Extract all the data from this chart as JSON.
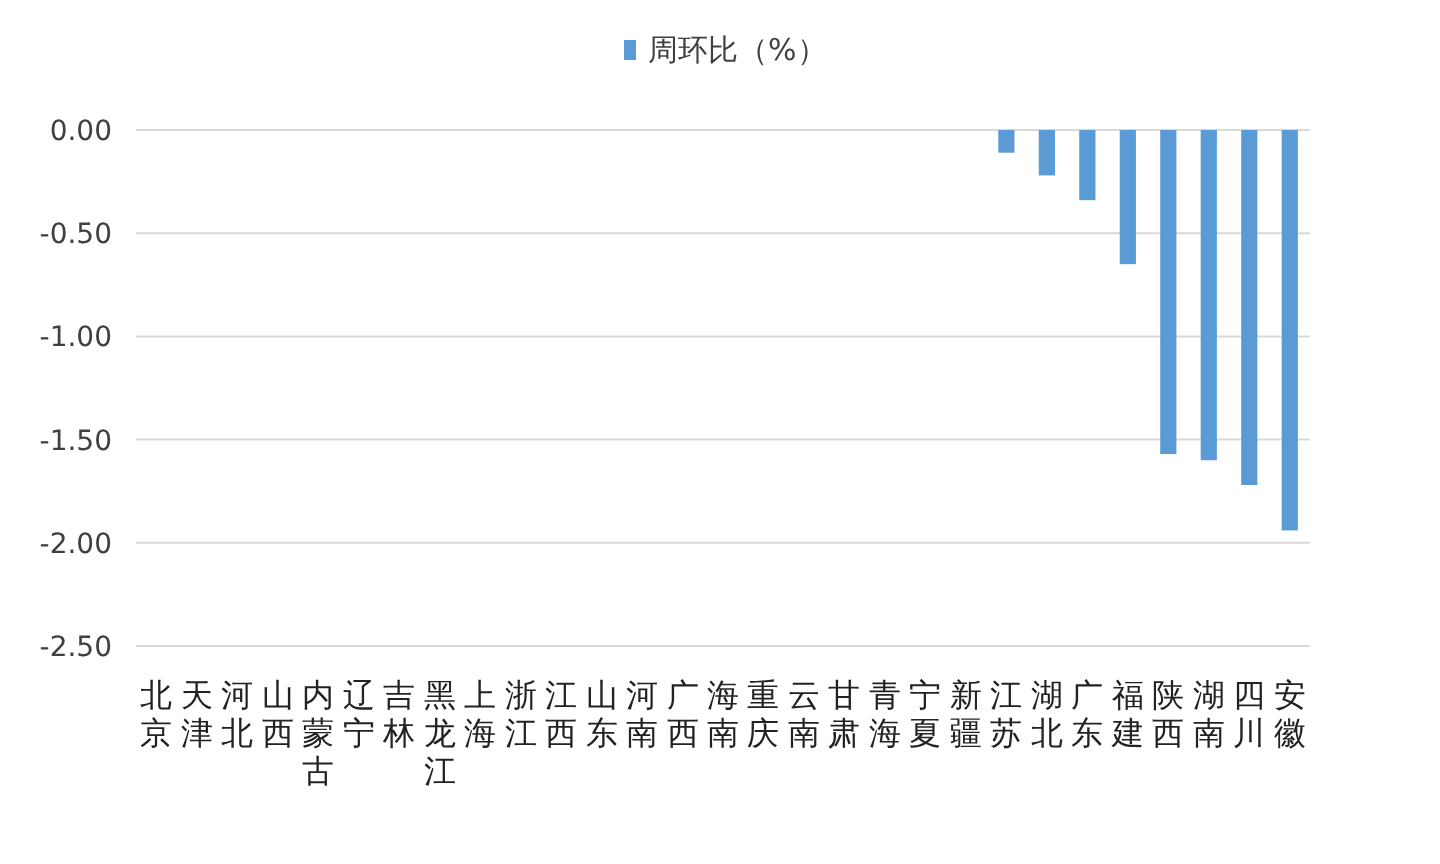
{
  "chart_data": {
    "type": "bar",
    "categories": [
      "北京",
      "天津",
      "河北",
      "山西",
      "内蒙古",
      "辽宁",
      "吉林",
      "黑龙江",
      "上海",
      "浙江",
      "江西",
      "山东",
      "河南",
      "广西",
      "海南",
      "重庆",
      "云南",
      "甘肃",
      "青海",
      "宁夏",
      "新疆",
      "江苏",
      "湖北",
      "广东",
      "福建",
      "陕西",
      "湖南",
      "四川",
      "安徽"
    ],
    "series": [
      {
        "name": "周环比（%）",
        "color": "#5b9bd5",
        "values": [
          0,
          0,
          0,
          0,
          0,
          0,
          0,
          0,
          0,
          0,
          0,
          0,
          0,
          0,
          0,
          0,
          0,
          0,
          0,
          0,
          0,
          -0.11,
          -0.22,
          -0.34,
          -0.65,
          -1.57,
          -1.6,
          -1.72,
          -1.94
        ]
      }
    ],
    "ylim": [
      -2.5,
      0
    ],
    "yticks": [
      {
        "value": 0,
        "label": "0.00"
      },
      {
        "value": -0.5,
        "label": "-0.50"
      },
      {
        "value": -1,
        "label": "-1.00"
      },
      {
        "value": -1.5,
        "label": "-1.50"
      },
      {
        "value": -2,
        "label": "-2.00"
      },
      {
        "value": -2.5,
        "label": "-2.50"
      }
    ],
    "grid": "y",
    "legend": "top"
  }
}
